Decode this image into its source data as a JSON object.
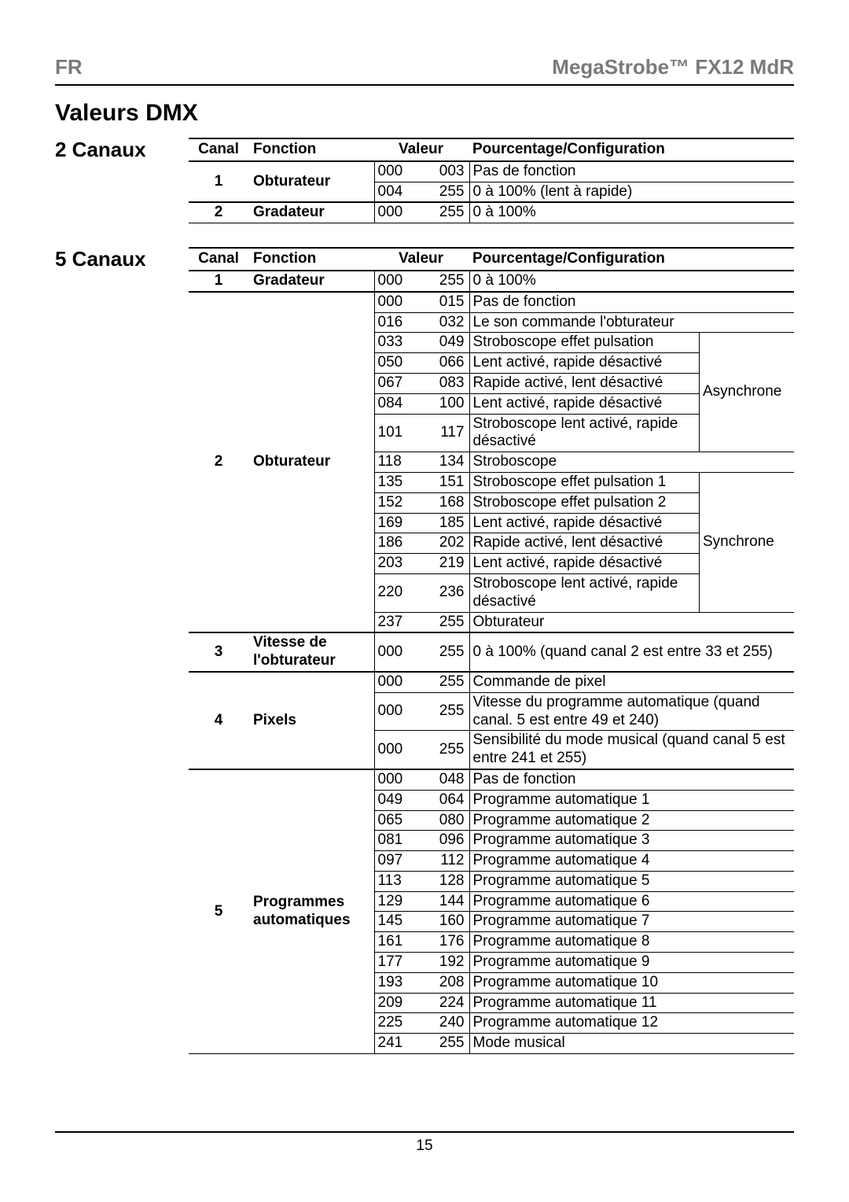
{
  "header": {
    "lang": "FR",
    "product": "MegaStrobe™ FX12 MdR"
  },
  "title": "Valeurs DMX",
  "page_number": "15",
  "sections": {
    "two": {
      "label": "2 Canaux",
      "head": {
        "canal": "Canal",
        "fonction": "Fonction",
        "valeur": "Valeur",
        "config": "Pourcentage/Configuration"
      },
      "rows": {
        "r0": {
          "canal": "1",
          "func": "Obturateur",
          "v1": "000",
          "v2": "003",
          "desc": "Pas de fonction"
        },
        "r1": {
          "v1": "004",
          "v2": "255",
          "desc": "0 à 100% (lent à rapide)"
        },
        "r2": {
          "canal": "2",
          "func": "Gradateur",
          "v1": "000",
          "v2": "255",
          "desc": "0 à 100%"
        }
      }
    },
    "five": {
      "label": "5 Canaux",
      "head": {
        "canal": "Canal",
        "fonction": "Fonction",
        "valeur": "Valeur",
        "config": "Pourcentage/Configuration"
      },
      "mode_async": "Asynchrone",
      "mode_sync": "Synchrone",
      "rows": {
        "c1": {
          "canal": "1",
          "func": "Gradateur",
          "v1": "000",
          "v2": "255",
          "desc": "0 à 100%"
        },
        "c2_0": {
          "canal": "2",
          "func": "Obturateur",
          "v1": "000",
          "v2": "015",
          "desc": "Pas de fonction"
        },
        "c2_1": {
          "v1": "016",
          "v2": "032",
          "desc": "Le son commande l'obturateur"
        },
        "c2_2": {
          "v1": "033",
          "v2": "049",
          "desc": "Stroboscope effet pulsation"
        },
        "c2_3": {
          "v1": "050",
          "v2": "066",
          "desc": "Lent activé, rapide désactivé"
        },
        "c2_4": {
          "v1": "067",
          "v2": "083",
          "desc": "Rapide activé, lent désactivé"
        },
        "c2_5": {
          "v1": "084",
          "v2": "100",
          "desc": "Lent activé, rapide désactivé"
        },
        "c2_6": {
          "v1": "101",
          "v2": "117",
          "desc": "Stroboscope lent activé, rapide désactivé"
        },
        "c2_7": {
          "v1": "118",
          "v2": "134",
          "desc": "Stroboscope"
        },
        "c2_8": {
          "v1": "135",
          "v2": "151",
          "desc": "Stroboscope effet pulsation 1"
        },
        "c2_9": {
          "v1": "152",
          "v2": "168",
          "desc": "Stroboscope effet pulsation 2"
        },
        "c2_10": {
          "v1": "169",
          "v2": "185",
          "desc": "Lent activé, rapide désactivé"
        },
        "c2_11": {
          "v1": "186",
          "v2": "202",
          "desc": "Rapide activé, lent désactivé"
        },
        "c2_12": {
          "v1": "203",
          "v2": "219",
          "desc": "Lent activé, rapide désactivé"
        },
        "c2_13": {
          "v1": "220",
          "v2": "236",
          "desc": "Stroboscope lent activé, rapide désactivé"
        },
        "c2_14": {
          "v1": "237",
          "v2": "255",
          "desc": "Obturateur"
        },
        "c3": {
          "canal": "3",
          "func": "Vitesse de l'obturateur",
          "v1": "000",
          "v2": "255",
          "desc": "0 à 100% (quand canal 2 est entre 33 et 255)"
        },
        "c4_0": {
          "canal": "4",
          "func": "Pixels",
          "v1": "000",
          "v2": "255",
          "desc": "Commande de pixel"
        },
        "c4_1": {
          "v1": "000",
          "v2": "255",
          "desc": "Vitesse du programme automatique (quand canal. 5 est entre 49 et 240)"
        },
        "c4_2": {
          "v1": "000",
          "v2": "255",
          "desc": "Sensibilité du mode musical (quand canal 5 est entre 241 et 255)"
        },
        "c5_0": {
          "canal": "5",
          "func": "Programmes automatiques",
          "v1": "000",
          "v2": "048",
          "desc": "Pas de fonction"
        },
        "c5_1": {
          "v1": "049",
          "v2": "064",
          "desc": "Programme automatique 1"
        },
        "c5_2": {
          "v1": "065",
          "v2": "080",
          "desc": "Programme automatique 2"
        },
        "c5_3": {
          "v1": "081",
          "v2": "096",
          "desc": "Programme automatique 3"
        },
        "c5_4": {
          "v1": "097",
          "v2": "112",
          "desc": "Programme automatique 4"
        },
        "c5_5": {
          "v1": "113",
          "v2": "128",
          "desc": "Programme automatique 5"
        },
        "c5_6": {
          "v1": "129",
          "v2": "144",
          "desc": "Programme automatique 6"
        },
        "c5_7": {
          "v1": "145",
          "v2": "160",
          "desc": "Programme automatique 7"
        },
        "c5_8": {
          "v1": "161",
          "v2": "176",
          "desc": "Programme automatique 8"
        },
        "c5_9": {
          "v1": "177",
          "v2": "192",
          "desc": "Programme automatique 9"
        },
        "c5_10": {
          "v1": "193",
          "v2": "208",
          "desc": "Programme automatique 10"
        },
        "c5_11": {
          "v1": "209",
          "v2": "224",
          "desc": "Programme automatique 11"
        },
        "c5_12": {
          "v1": "225",
          "v2": "240",
          "desc": "Programme automatique 12"
        },
        "c5_13": {
          "v1": "241",
          "v2": "255",
          "desc": "Mode musical"
        }
      }
    }
  }
}
